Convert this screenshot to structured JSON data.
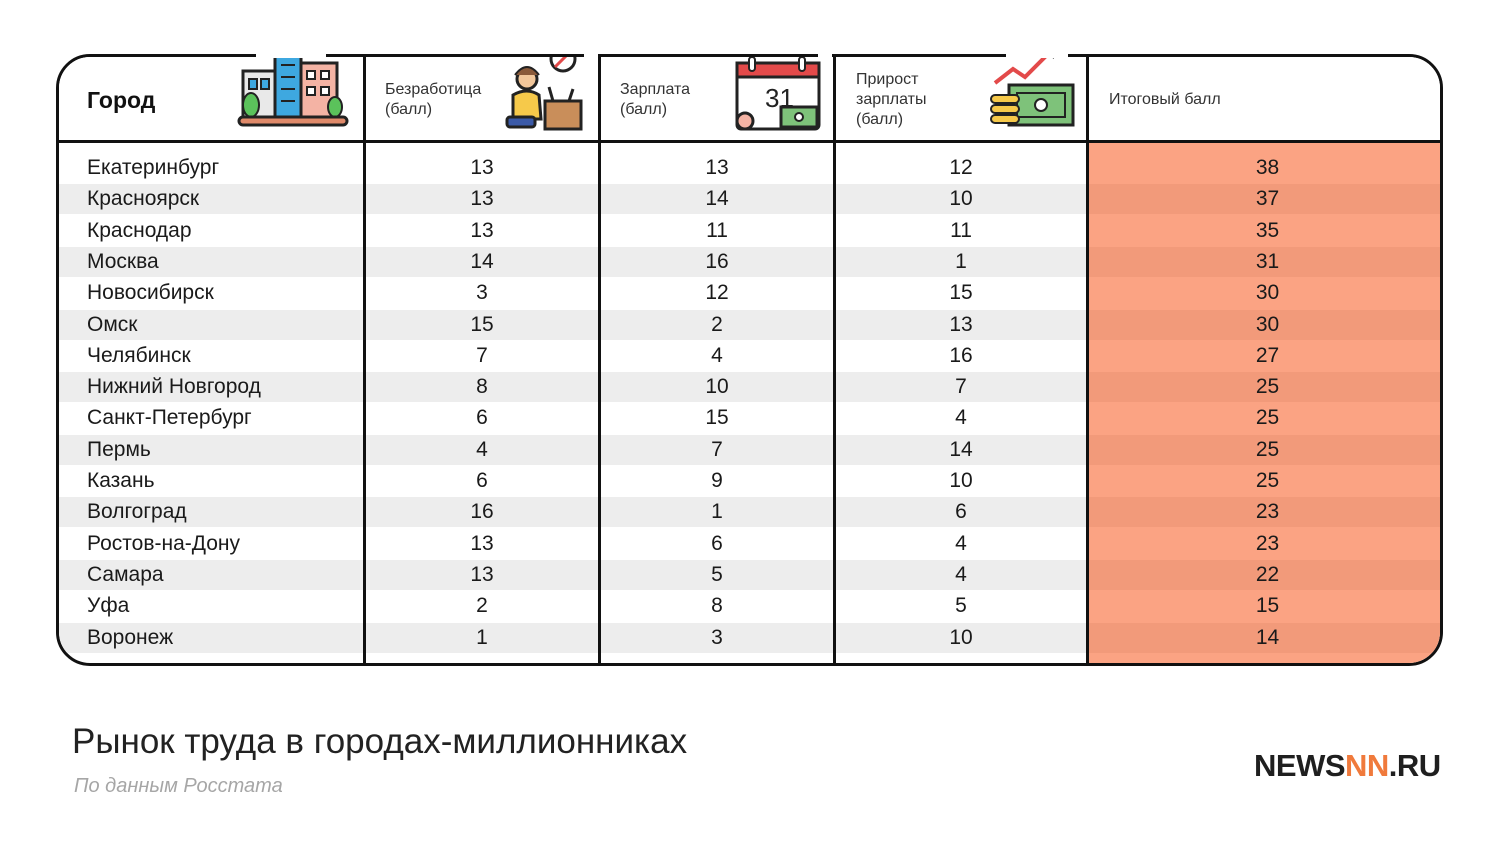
{
  "header": {
    "city": "Город",
    "unemployment": [
      "Безработица",
      "(балл)"
    ],
    "salary": [
      "Зарплата",
      "(балл)"
    ],
    "growth": [
      "Прирост",
      "зарплаты",
      "(балл)"
    ],
    "total": "Итоговый балл"
  },
  "icons": {
    "city": "city-buildings-icon",
    "unemployment": "unemployed-person-icon",
    "salary": "payday-calendar-icon",
    "calendar_day": "31",
    "growth": "money-growth-icon"
  },
  "colors": {
    "score_column": "#fba383",
    "score_stripe": "#f29a7a",
    "row_stripe": "#ededed",
    "logo_accent": "#f07a3c"
  },
  "chart_data": {
    "type": "table",
    "columns": [
      "Город",
      "Безработица (балл)",
      "Зарплата (балл)",
      "Прирост зарплаты (балл)",
      "Итоговый балл"
    ],
    "rows": [
      [
        "Екатеринбург",
        "13",
        "13",
        "12",
        "38"
      ],
      [
        "Красноярск",
        "13",
        "14",
        "10",
        "37"
      ],
      [
        "Краснодар",
        "13",
        "11",
        "11",
        "35"
      ],
      [
        "Москва",
        "14",
        "16",
        "1",
        "31"
      ],
      [
        "Новосибирск",
        "3",
        "12",
        "15",
        "30"
      ],
      [
        "Омск",
        "15",
        "2",
        "13",
        "30"
      ],
      [
        "Челябинск",
        "7",
        "4",
        "16",
        "27"
      ],
      [
        "Нижний Новгород",
        "8",
        "10",
        "7",
        "25"
      ],
      [
        "Санкт-Петербург",
        "6",
        "15",
        "4",
        "25"
      ],
      [
        "Пермь",
        "4",
        "7",
        "14",
        "25"
      ],
      [
        "Казань",
        "6",
        "9",
        "10",
        "25"
      ],
      [
        "Волгоград",
        "16",
        "1",
        "6",
        "23"
      ],
      [
        "Ростов-на-Дону",
        "13",
        "6",
        "4",
        "23"
      ],
      [
        "Самара",
        "13",
        "5",
        "4",
        "22"
      ],
      [
        "Уфа",
        "2",
        "8",
        "5",
        "15"
      ],
      [
        "Воронеж",
        "1",
        "3",
        "10",
        "14"
      ]
    ]
  },
  "footer": {
    "title": "Рынок труда в городах-миллионниках",
    "source": "По данным Росстата"
  },
  "logo": {
    "left": "NEWS",
    "accent": "NN",
    "right": ".RU"
  }
}
